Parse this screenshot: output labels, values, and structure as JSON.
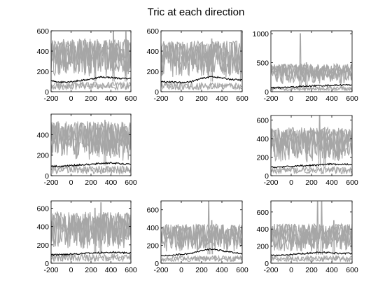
{
  "title": "Tric at each direction",
  "colors": {
    "background": "#ffffff",
    "trials": "#a6a6a6",
    "mean": "#000000",
    "axes": "#000000"
  },
  "chart_data": [
    {
      "type": "line",
      "x": [
        -200,
        600
      ],
      "xlim": [
        -200,
        600
      ],
      "xticks": [
        -200,
        0,
        200,
        400,
        600
      ],
      "ylim": [
        0,
        600
      ],
      "yticks": [
        0,
        200,
        400,
        600
      ],
      "trial_range": [
        20,
        520
      ],
      "mean": {
        "x": [
          -200,
          -100,
          0,
          100,
          200,
          300,
          400,
          500,
          600
        ],
        "y": [
          105,
          95,
          100,
          110,
          125,
          145,
          140,
          130,
          130
        ]
      },
      "spikes": [
        [
          425,
          600
        ],
        [
          550,
          590
        ],
        [
          240,
          500
        ]
      ]
    },
    {
      "type": "line",
      "x": [
        -200,
        600
      ],
      "xlim": [
        -200,
        600
      ],
      "xticks": [
        -200,
        0,
        200,
        400,
        600
      ],
      "ylim": [
        0,
        600
      ],
      "yticks": [
        0,
        200,
        400,
        600
      ],
      "trial_range": [
        20,
        500
      ],
      "mean": {
        "x": [
          -200,
          -100,
          0,
          100,
          200,
          300,
          400,
          500,
          600
        ],
        "y": [
          100,
          95,
          90,
          100,
          130,
          150,
          135,
          120,
          115
        ]
      },
      "spikes": [
        [
          590,
          590
        ],
        [
          300,
          520
        ]
      ]
    },
    {
      "type": "line",
      "x": [
        -200,
        600
      ],
      "xlim": [
        -200,
        600
      ],
      "xticks": [
        -200,
        0,
        200,
        400,
        600
      ],
      "ylim": [
        0,
        1050
      ],
      "yticks": [
        0,
        500,
        1000
      ],
      "trial_range": [
        20,
        480
      ],
      "mean": {
        "x": [
          -200,
          -100,
          0,
          100,
          200,
          300,
          400,
          500,
          600
        ],
        "y": [
          60,
          70,
          80,
          90,
          100,
          105,
          110,
          115,
          120
        ]
      },
      "spikes": [
        [
          90,
          1000
        ],
        [
          150,
          500
        ]
      ]
    },
    {
      "type": "line",
      "x": [
        -200,
        600
      ],
      "xlim": [
        -200,
        600
      ],
      "xticks": [
        -200,
        0,
        200,
        400,
        600
      ],
      "ylim": [
        0,
        600
      ],
      "yticks": [
        0,
        200,
        400
      ],
      "trial_range": [
        20,
        530
      ],
      "mean": {
        "x": [
          -200,
          -100,
          0,
          100,
          200,
          300,
          400,
          500,
          600
        ],
        "y": [
          95,
          90,
          100,
          105,
          110,
          120,
          125,
          115,
          110
        ]
      },
      "spikes": [
        [
          340,
          540
        ]
      ]
    },
    {
      "type": "line",
      "x": [
        -200,
        600
      ],
      "xlim": [
        -200,
        600
      ],
      "xticks": [
        -200,
        0,
        200,
        400,
        600
      ],
      "ylim": [
        0,
        650
      ],
      "yticks": [
        0,
        200,
        400,
        600
      ],
      "trial_range": [
        20,
        520
      ],
      "mean": {
        "x": [
          -200,
          -100,
          0,
          100,
          200,
          300,
          400,
          500,
          600
        ],
        "y": [
          90,
          95,
          100,
          110,
          110,
          120,
          125,
          120,
          125
        ]
      },
      "spikes": [
        [
          280,
          650
        ],
        [
          330,
          520
        ]
      ]
    },
    {
      "type": "line",
      "x": [
        -200,
        600
      ],
      "xlim": [
        -200,
        600
      ],
      "xticks": [
        -200,
        0,
        200,
        400,
        600
      ],
      "ylim": [
        0,
        680
      ],
      "yticks": [
        0,
        200,
        400,
        600
      ],
      "trial_range": [
        20,
        560
      ],
      "mean": {
        "x": [
          -200,
          -100,
          0,
          100,
          200,
          300,
          400,
          500,
          600
        ],
        "y": [
          90,
          95,
          100,
          105,
          110,
          115,
          120,
          115,
          110
        ]
      },
      "spikes": [
        [
          300,
          660
        ],
        [
          240,
          600
        ]
      ]
    },
    {
      "type": "line",
      "x": [
        -200,
        600
      ],
      "xlim": [
        -200,
        600
      ],
      "xticks": [
        -200,
        0,
        200,
        400,
        600
      ],
      "ylim": [
        0,
        700
      ],
      "yticks": [
        0,
        200,
        400,
        600
      ],
      "trial_range": [
        20,
        440
      ],
      "mean": {
        "x": [
          -200,
          -100,
          0,
          100,
          200,
          300,
          400,
          500,
          600
        ],
        "y": [
          80,
          90,
          100,
          110,
          140,
          160,
          140,
          120,
          110
        ]
      },
      "spikes": [
        [
          270,
          700
        ],
        [
          300,
          480
        ]
      ]
    },
    {
      "type": "line",
      "x": [
        -200,
        600
      ],
      "xlim": [
        -200,
        600
      ],
      "xticks": [
        -200,
        0,
        200,
        400,
        600
      ],
      "ylim": [
        0,
        730
      ],
      "yticks": [
        0,
        200,
        400,
        600
      ],
      "trial_range": [
        20,
        460
      ],
      "mean": {
        "x": [
          -200,
          -100,
          0,
          100,
          200,
          300,
          400,
          500,
          600
        ],
        "y": [
          95,
          90,
          100,
          110,
          120,
          130,
          120,
          115,
          115
        ]
      },
      "spikes": [
        [
          260,
          720
        ],
        [
          300,
          720
        ],
        [
          420,
          500
        ]
      ]
    }
  ]
}
